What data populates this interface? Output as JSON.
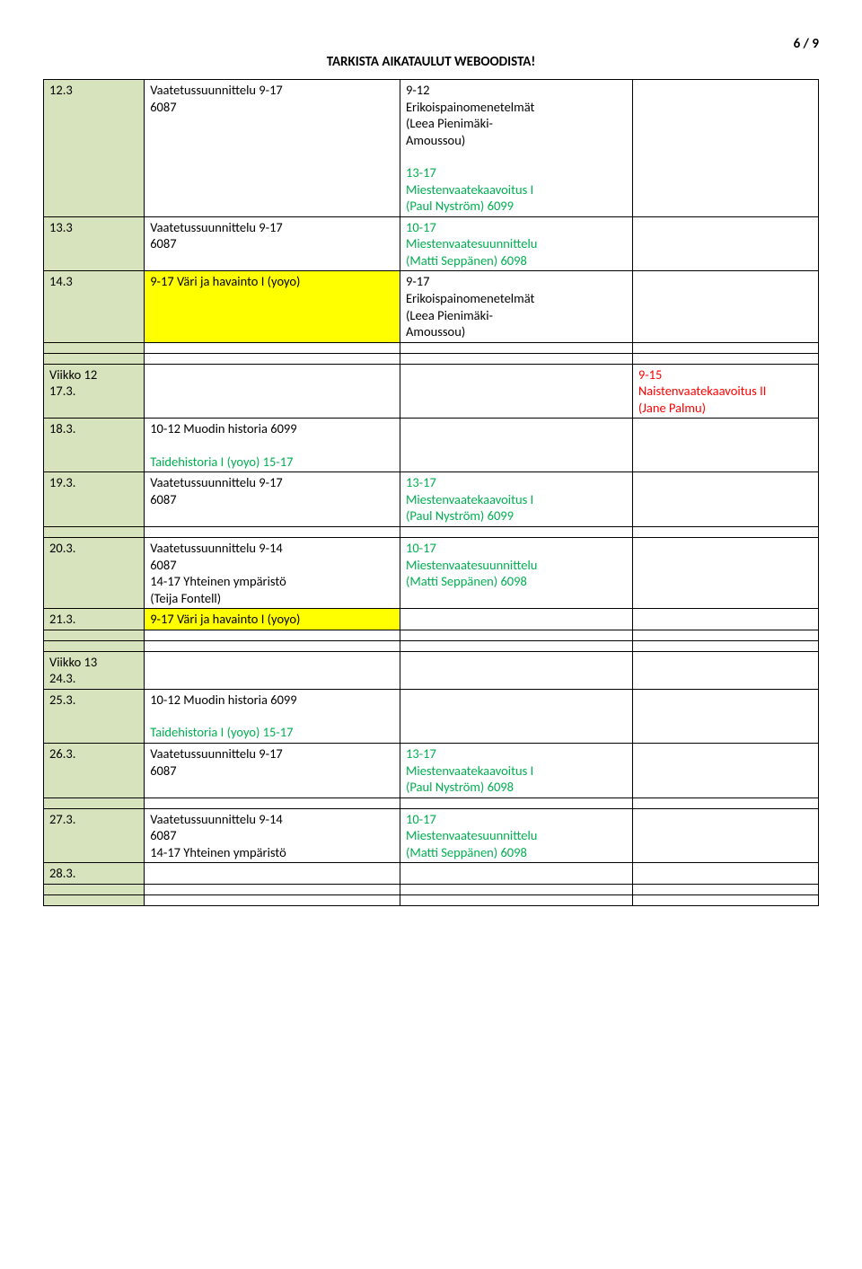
{
  "page_number": "6 / 9",
  "header": "TARKISTA AIKATAULUT WEBOODISTA!",
  "colors": {
    "olive": "#d7e3bc",
    "yellow": "#ffff00",
    "green": "#00b050",
    "red": "#ff0000",
    "black": "#000000",
    "border": "#000000",
    "white": "#ffffff"
  },
  "r1": {
    "date": "12.3",
    "c2a": "Vaatetussuunnittelu 9-17",
    "c2b": "6087",
    "c3a": "9-12",
    "c3b": "Erikoispainomenetelmät",
    "c3c": "(Leea Pienimäki-",
    "c3d": "Amoussou)",
    "c3e": "13-17",
    "c3f": "Miestenvaatekaavoitus I",
    "c3g": "(Paul Nyström) 6099"
  },
  "r2": {
    "date": "13.3",
    "c2a": "Vaatetussuunnittelu 9-17",
    "c2b": "6087",
    "c3a": "10-17",
    "c3b": "Miestenvaatesuunnittelu",
    "c3c": "(Matti Seppänen) 6098"
  },
  "r3": {
    "date": "14.3",
    "c2": "9-17 Väri ja havainto I (yoyo)",
    "c3a": "9-17",
    "c3b": "Erikoispainomenetelmät",
    "c3c": "(Leea Pienimäki-",
    "c3d": "Amoussou)"
  },
  "wk12": {
    "label": "Viikko 12",
    "date": "17.3.",
    "c4a": "9-15",
    "c4b": "Naistenvaatekaavoitus II",
    "c4c": "(Jane Palmu)"
  },
  "r18": {
    "date": "18.3.",
    "c2a": "10-12 Muodin historia 6099",
    "c2b": "Taidehistoria I (yoyo) 15-17"
  },
  "r19": {
    "date": "19.3.",
    "c2a": "Vaatetussuunnittelu 9-17",
    "c2b": "6087",
    "c3a": "13-17",
    "c3b": "Miestenvaatekaavoitus I",
    "c3c": "(Paul Nyström) 6099"
  },
  "r20": {
    "date": "20.3.",
    "c2a": "Vaatetussuunnittelu 9-14",
    "c2b": "6087",
    "c2c": "14-17 Yhteinen ympäristö",
    "c2d": "(Teija Fontell)",
    "c3a": "10-17",
    "c3b": "Miestenvaatesuunnittelu",
    "c3c": "(Matti Seppänen) 6098"
  },
  "r21": {
    "date": "21.3.",
    "c2": "9-17 Väri ja havainto I (yoyo)"
  },
  "wk13": {
    "label": "Viikko 13",
    "date": "24.3."
  },
  "r25": {
    "date": "25.3.",
    "c2a": "10-12 Muodin historia 6099",
    "c2b": "Taidehistoria I (yoyo) 15-17"
  },
  "r26": {
    "date": "26.3.",
    "c2a": "Vaatetussuunnittelu 9-17",
    "c2b": "6087",
    "c3a": "13-17",
    "c3b": "Miestenvaatekaavoitus I",
    "c3c": "(Paul Nyström) 6098"
  },
  "r27": {
    "date": "27.3.",
    "c2a": "Vaatetussuunnittelu 9-14",
    "c2b": "6087",
    "c2c": "14-17 Yhteinen ympäristö",
    "c3a": "10-17",
    "c3b": "Miestenvaatesuunnittelu",
    "c3c": "(Matti Seppänen) 6098"
  },
  "r28": {
    "date": "28.3."
  }
}
